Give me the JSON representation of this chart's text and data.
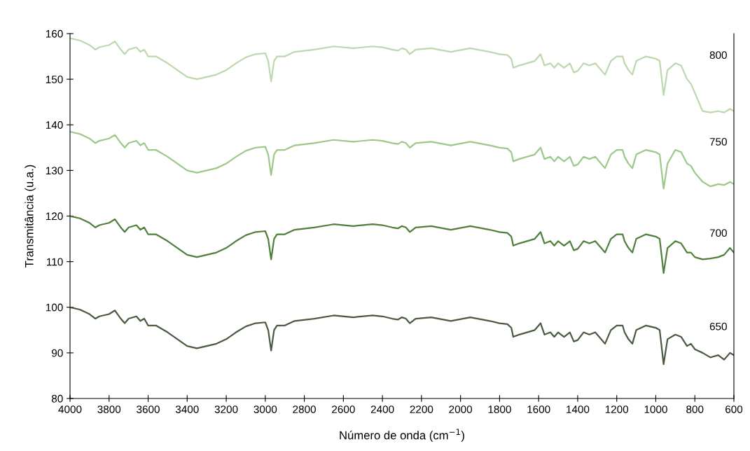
{
  "chart_data": {
    "type": "line",
    "xlabel": "Número de onda (cm$^{−1}$)",
    "ylabel": "Transmitância (u.a.)",
    "x": [
      4000,
      3950,
      3900,
      3870,
      3850,
      3800,
      3770,
      3740,
      3720,
      3700,
      3660,
      3640,
      3620,
      3600,
      3560,
      3500,
      3450,
      3400,
      3350,
      3300,
      3250,
      3200,
      3150,
      3100,
      3050,
      3000,
      2985,
      2970,
      2955,
      2940,
      2900,
      2850,
      2750,
      2650,
      2550,
      2450,
      2400,
      2350,
      2320,
      2300,
      2280,
      2260,
      2230,
      2150,
      2050,
      1950,
      1850,
      1800,
      1760,
      1740,
      1730,
      1700,
      1660,
      1620,
      1590,
      1570,
      1540,
      1520,
      1500,
      1470,
      1440,
      1420,
      1400,
      1370,
      1340,
      1310,
      1280,
      1260,
      1230,
      1200,
      1170,
      1160,
      1140,
      1120,
      1100,
      1050,
      1000,
      980,
      960,
      940,
      900,
      870,
      840,
      820,
      800,
      760,
      720,
      680,
      650,
      620,
      600
    ],
    "series": [
      {
        "name": "800",
        "color": "#bcd8ae",
        "values": [
          159,
          158.5,
          157.5,
          156.5,
          157,
          157.5,
          158.3,
          156.5,
          155.5,
          156.5,
          157,
          156,
          156.5,
          155,
          155,
          153.5,
          152,
          150.5,
          150,
          150.5,
          151,
          152,
          153.5,
          154.8,
          155.5,
          155.7,
          154,
          149.5,
          154,
          155,
          155,
          156,
          156.5,
          157.2,
          156.8,
          157.2,
          157,
          156.5,
          156.3,
          156.8,
          156.5,
          155.5,
          156.5,
          156.8,
          156,
          156.8,
          156,
          155.5,
          155.3,
          154.5,
          152.5,
          153,
          153.5,
          154,
          155.5,
          153,
          153.5,
          152.5,
          153.5,
          152.5,
          153.5,
          151.5,
          151.8,
          153.5,
          153,
          153.5,
          152,
          151,
          154,
          155,
          155,
          153.5,
          152,
          151,
          154,
          155,
          154.5,
          154,
          146.5,
          152,
          153.5,
          153,
          150,
          149,
          147,
          143,
          142.7,
          143,
          142.7,
          143.5,
          143
        ]
      },
      {
        "name": "750",
        "color": "#9cc88a",
        "values": [
          138.5,
          138,
          137,
          136,
          136.5,
          137,
          137.8,
          136,
          135,
          136,
          136.5,
          135.5,
          136,
          134.5,
          134.5,
          133,
          131.5,
          130,
          129.5,
          130,
          130.5,
          131.5,
          133,
          134.3,
          135,
          135.2,
          133.5,
          129,
          133.5,
          134.5,
          134.5,
          135.5,
          136,
          136.7,
          136.3,
          136.7,
          136.5,
          136,
          135.8,
          136.3,
          136,
          135,
          136,
          136.3,
          135.5,
          136.3,
          135.5,
          135,
          134.8,
          134,
          132,
          132.5,
          133,
          133.5,
          135,
          132.5,
          133,
          132,
          133,
          132,
          133,
          131,
          131.3,
          133,
          132.5,
          133,
          131.5,
          130.5,
          133.5,
          134.5,
          134.5,
          133,
          131.5,
          130.5,
          133.5,
          134.5,
          134,
          133.5,
          126,
          131.5,
          134.5,
          134,
          131.5,
          131,
          129.5,
          127.5,
          126.5,
          127,
          126.8,
          127.5,
          127
        ]
      },
      {
        "name": "700",
        "color": "#4f7f3a",
        "values": [
          120,
          119.5,
          118.5,
          117.5,
          118,
          118.5,
          119.3,
          117.5,
          116.5,
          117.5,
          118,
          117,
          117.5,
          116,
          116,
          114.5,
          113,
          111.5,
          111,
          111.5,
          112,
          113,
          114.5,
          115.8,
          116.5,
          116.7,
          115,
          110.5,
          115,
          116,
          116,
          117,
          117.5,
          118.2,
          117.8,
          118.2,
          118,
          117.5,
          117.3,
          117.8,
          117.5,
          116.5,
          117.5,
          117.8,
          117,
          117.8,
          117,
          116.5,
          116.3,
          115.5,
          113.5,
          114,
          114.5,
          115,
          116.5,
          114,
          114.5,
          113.5,
          114.5,
          113.5,
          114.5,
          112.5,
          112.8,
          114.5,
          114,
          114.5,
          113,
          112,
          115,
          116,
          116,
          114.5,
          113,
          112,
          115,
          116,
          115.5,
          115,
          107.5,
          113,
          114.5,
          114,
          112,
          112,
          111,
          110.5,
          110.7,
          111,
          111.5,
          113,
          112
        ]
      },
      {
        "name": "650",
        "color": "#4a5a40",
        "values": [
          100,
          99.5,
          98.5,
          97.5,
          98,
          98.5,
          99.3,
          97.5,
          96.5,
          97.5,
          98,
          97,
          97.5,
          96,
          96,
          94.5,
          93,
          91.5,
          91,
          91.5,
          92,
          93,
          94.5,
          95.8,
          96.5,
          96.7,
          95,
          90.5,
          95,
          96,
          96,
          97,
          97.5,
          98.2,
          97.8,
          98.2,
          98,
          97.5,
          97.3,
          97.8,
          97.5,
          96.5,
          97.5,
          97.8,
          97,
          97.8,
          97,
          96.5,
          96.3,
          95.5,
          93.5,
          94,
          94.5,
          95,
          96.5,
          94,
          94.5,
          93.5,
          94.5,
          93.5,
          94.5,
          92.5,
          92.8,
          94.5,
          94,
          94.5,
          93,
          92,
          95,
          96,
          96,
          94.5,
          93,
          92,
          95,
          96,
          95.5,
          95,
          87.5,
          93,
          94,
          93.5,
          91.5,
          92,
          90.8,
          90,
          89,
          89.5,
          88.5,
          90,
          89.5
        ]
      }
    ],
    "xlim": [
      4000,
      600
    ],
    "xticks": [
      4000,
      3800,
      3600,
      3400,
      3200,
      3000,
      2800,
      2600,
      2400,
      2200,
      2000,
      1800,
      1600,
      1400,
      1200,
      1000,
      800,
      600
    ],
    "ylim": [
      80,
      160
    ],
    "yticks": [
      80,
      90,
      100,
      110,
      120,
      130,
      140,
      150,
      160
    ],
    "grid": false,
    "legend": false
  }
}
